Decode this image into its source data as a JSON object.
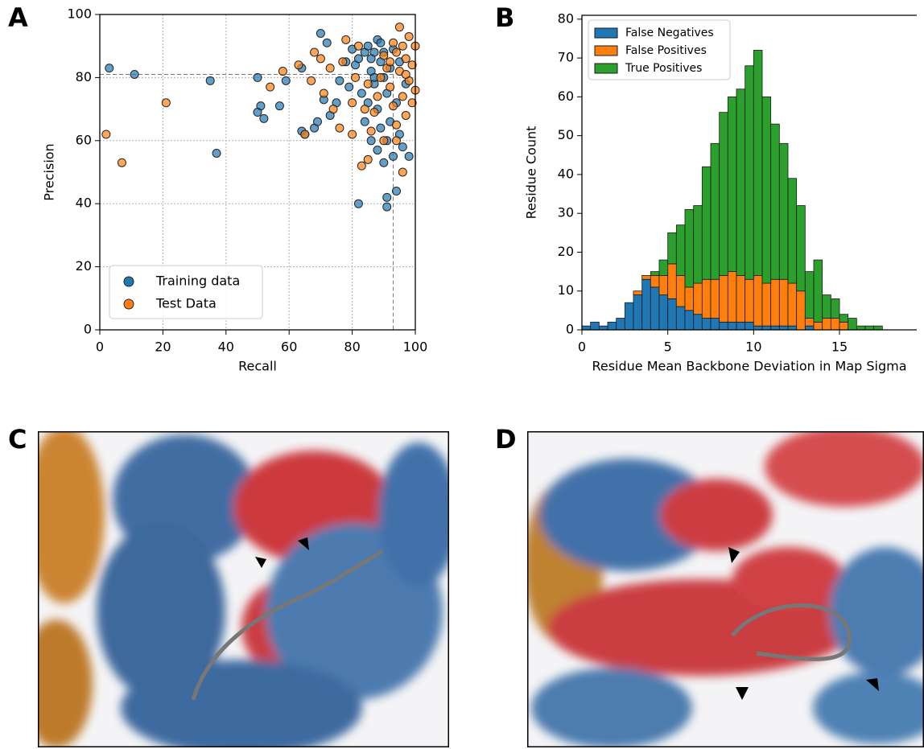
{
  "panel_labels": [
    "A",
    "B",
    "C",
    "D"
  ],
  "chart_data": [
    {
      "type": "scatter",
      "xlabel": "Recall",
      "ylabel": "Precision",
      "xlim": [
        0,
        100
      ],
      "ylim": [
        0,
        100
      ],
      "xticks": [
        0,
        20,
        40,
        60,
        80,
        100
      ],
      "yticks": [
        0,
        20,
        40,
        60,
        80,
        100
      ],
      "grid": true,
      "legend": "lower left",
      "ref_x": 93,
      "ref_y": 81,
      "series": [
        {
          "name": "Training data",
          "color": "#1f77b4",
          "x": [
            3,
            11,
            35,
            37,
            50,
            51,
            50,
            52,
            57,
            59,
            64,
            64,
            65,
            68,
            69,
            70,
            71,
            72,
            73,
            75,
            76,
            78,
            79,
            80,
            81,
            82,
            82,
            83,
            84,
            84,
            85,
            85,
            86,
            86,
            87,
            87,
            88,
            88,
            88,
            89,
            89,
            90,
            90,
            90,
            91,
            91,
            91,
            91,
            92,
            92,
            93,
            93,
            94,
            94,
            95,
            95,
            96,
            97,
            98,
            89,
            86,
            87
          ],
          "values": [
            83,
            81,
            79,
            56,
            80,
            71,
            69,
            67,
            71,
            79,
            83,
            63,
            62,
            64,
            66,
            94,
            73,
            91,
            68,
            72,
            79,
            85,
            77,
            89,
            84,
            40,
            86,
            75,
            88,
            66,
            90,
            72,
            82,
            60,
            88,
            78,
            92,
            70,
            57,
            85,
            64,
            80,
            53,
            88,
            42,
            39,
            60,
            75,
            83,
            66,
            89,
            55,
            44,
            72,
            62,
            85,
            58,
            78,
            55,
            91,
            86,
            80
          ]
        },
        {
          "name": "Test Data",
          "color": "#ff7f0e",
          "x": [
            2,
            7,
            21,
            54,
            58,
            63,
            65,
            67,
            68,
            70,
            71,
            73,
            74,
            76,
            77,
            78,
            80,
            80,
            81,
            82,
            83,
            84,
            85,
            85,
            86,
            87,
            88,
            89,
            90,
            90,
            91,
            92,
            93,
            93,
            94,
            94,
            95,
            95,
            96,
            96,
            97,
            97,
            98,
            98,
            99,
            99,
            100,
            100,
            94,
            96,
            92,
            97
          ],
          "values": [
            62,
            53,
            72,
            77,
            82,
            84,
            62,
            79,
            88,
            86,
            75,
            83,
            70,
            64,
            85,
            92,
            62,
            72,
            80,
            90,
            52,
            70,
            54,
            78,
            63,
            69,
            74,
            80,
            60,
            87,
            83,
            77,
            91,
            71,
            65,
            88,
            82,
            96,
            74,
            50,
            86,
            68,
            93,
            79,
            84,
            72,
            90,
            76,
            60,
            90,
            85,
            81
          ]
        }
      ]
    },
    {
      "type": "histogram",
      "xlabel": "Residue Mean Backbone Deviation in Map Sigma",
      "ylabel": "Residue Count",
      "xlim": [
        0,
        19.5
      ],
      "ylim": [
        0,
        81
      ],
      "xticks": [
        0,
        5,
        10,
        15
      ],
      "yticks": [
        0,
        10,
        20,
        30,
        40,
        50,
        60,
        70,
        80
      ],
      "legend": "upper left",
      "stacked": true,
      "bins": [
        0,
        0.5,
        1,
        1.5,
        2,
        2.5,
        3,
        3.5,
        4,
        4.5,
        5,
        5.5,
        6,
        6.5,
        7,
        7.5,
        8,
        8.5,
        9,
        9.5,
        10,
        10.5,
        11,
        11.5,
        12,
        12.5,
        13,
        13.5,
        14,
        14.5,
        15,
        15.5,
        16,
        16.5,
        17,
        17.5,
        18
      ],
      "series": [
        {
          "name": "False Negatives",
          "color": "#1f77b4",
          "values": [
            1,
            2,
            1,
            2,
            3,
            7,
            9,
            13,
            11,
            9,
            8,
            6,
            5,
            4,
            3,
            3,
            2,
            2,
            2,
            2,
            1,
            1,
            1,
            1,
            1,
            0,
            1,
            0,
            0,
            0,
            0,
            0,
            0,
            0,
            0,
            0
          ]
        },
        {
          "name": "False Positives",
          "color": "#ff7f0e",
          "values": [
            0,
            0,
            0,
            0,
            0,
            0,
            1,
            1,
            3,
            5,
            9,
            8,
            6,
            8,
            10,
            10,
            12,
            13,
            12,
            11,
            13,
            11,
            12,
            12,
            11,
            10,
            2,
            2,
            3,
            3,
            2,
            0,
            0,
            0,
            0,
            0
          ]
        },
        {
          "name": "True Positives",
          "color": "#2ca02c",
          "values": [
            0,
            0,
            0,
            0,
            0,
            0,
            0,
            0,
            1,
            4,
            8,
            13,
            20,
            20,
            29,
            35,
            42,
            45,
            48,
            55,
            58,
            48,
            40,
            35,
            27,
            22,
            12,
            16,
            6,
            5,
            2,
            3,
            1,
            1,
            1,
            0
          ]
        }
      ]
    }
  ]
}
